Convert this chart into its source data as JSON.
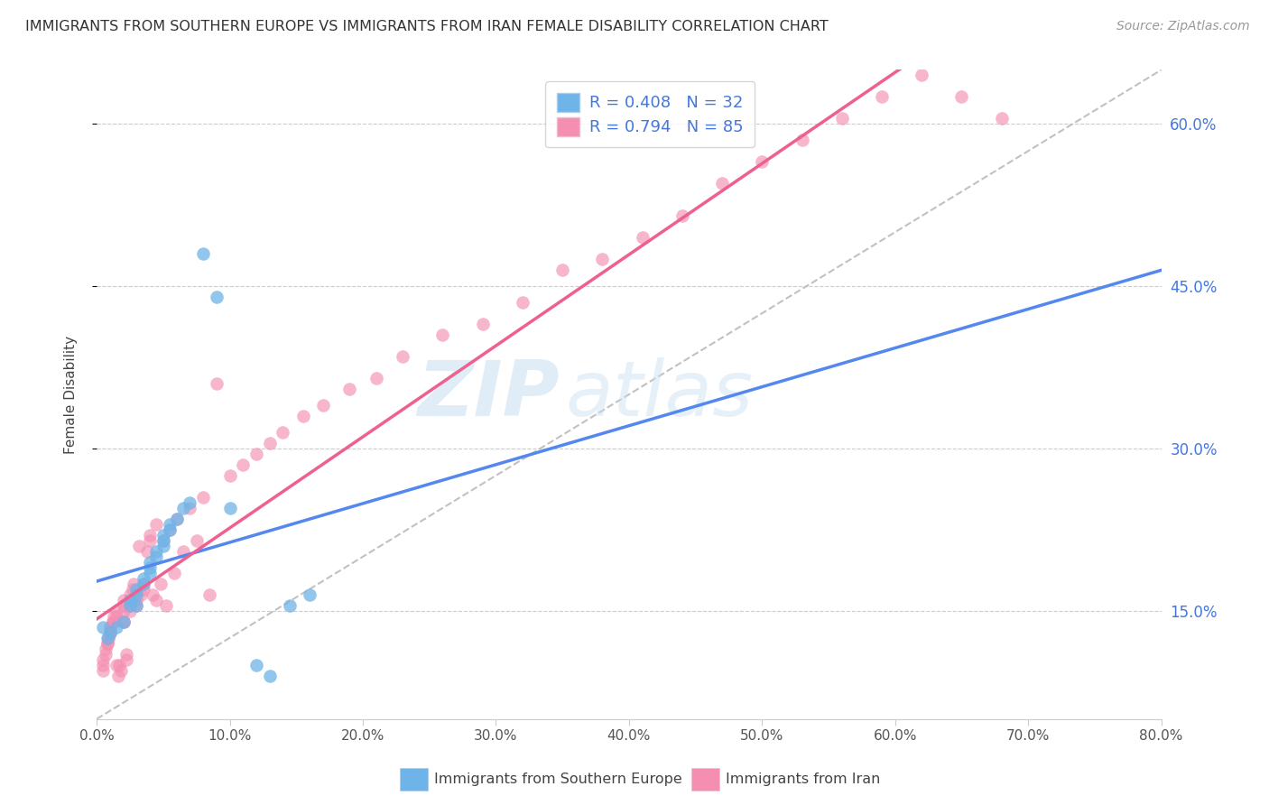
{
  "title": "IMMIGRANTS FROM SOUTHERN EUROPE VS IMMIGRANTS FROM IRAN FEMALE DISABILITY CORRELATION CHART",
  "source": "Source: ZipAtlas.com",
  "ylabel": "Female Disability",
  "ytick_labels": [
    "15.0%",
    "30.0%",
    "45.0%",
    "60.0%"
  ],
  "ytick_values": [
    0.15,
    0.3,
    0.45,
    0.6
  ],
  "xlim": [
    0.0,
    0.8
  ],
  "ylim": [
    0.05,
    0.65
  ],
  "legend_r1": "0.408",
  "legend_n1": "32",
  "legend_r2": "0.794",
  "legend_n2": "85",
  "legend_label1": "Immigrants from Southern Europe",
  "legend_label2": "Immigrants from Iran",
  "color_blue": "#6EB4E8",
  "color_pink": "#F48FB1",
  "color_blue_text": "#4477DD",
  "color_pink_line": "#EE6090",
  "color_blue_line": "#5588EE",
  "color_diagonal_dash": "#BBBBBB",
  "watermark_zip": "ZIP",
  "watermark_atlas": "atlas",
  "scatter_blue_x": [
    0.005,
    0.008,
    0.01,
    0.015,
    0.02,
    0.025,
    0.025,
    0.03,
    0.03,
    0.03,
    0.035,
    0.035,
    0.04,
    0.04,
    0.04,
    0.045,
    0.045,
    0.05,
    0.05,
    0.05,
    0.055,
    0.055,
    0.06,
    0.065,
    0.07,
    0.08,
    0.09,
    0.1,
    0.12,
    0.13,
    0.145,
    0.16
  ],
  "scatter_blue_y": [
    0.135,
    0.125,
    0.13,
    0.135,
    0.14,
    0.155,
    0.16,
    0.155,
    0.165,
    0.17,
    0.175,
    0.18,
    0.185,
    0.19,
    0.195,
    0.2,
    0.205,
    0.21,
    0.215,
    0.22,
    0.225,
    0.23,
    0.235,
    0.245,
    0.25,
    0.48,
    0.44,
    0.245,
    0.1,
    0.09,
    0.155,
    0.165
  ],
  "scatter_pink_x": [
    0.005,
    0.005,
    0.005,
    0.007,
    0.007,
    0.008,
    0.008,
    0.009,
    0.009,
    0.01,
    0.01,
    0.01,
    0.01,
    0.012,
    0.012,
    0.013,
    0.013,
    0.015,
    0.015,
    0.015,
    0.016,
    0.017,
    0.018,
    0.02,
    0.02,
    0.02,
    0.02,
    0.02,
    0.022,
    0.022,
    0.025,
    0.025,
    0.025,
    0.027,
    0.028,
    0.03,
    0.03,
    0.03,
    0.032,
    0.033,
    0.035,
    0.035,
    0.038,
    0.04,
    0.04,
    0.042,
    0.045,
    0.045,
    0.048,
    0.05,
    0.052,
    0.055,
    0.058,
    0.06,
    0.065,
    0.07,
    0.075,
    0.08,
    0.085,
    0.09,
    0.1,
    0.11,
    0.12,
    0.13,
    0.14,
    0.155,
    0.17,
    0.19,
    0.21,
    0.23,
    0.26,
    0.29,
    0.32,
    0.35,
    0.38,
    0.41,
    0.44,
    0.47,
    0.5,
    0.53,
    0.56,
    0.59,
    0.62,
    0.65,
    0.68
  ],
  "scatter_pink_y": [
    0.095,
    0.1,
    0.105,
    0.11,
    0.115,
    0.12,
    0.12,
    0.125,
    0.125,
    0.13,
    0.13,
    0.135,
    0.135,
    0.14,
    0.14,
    0.14,
    0.145,
    0.145,
    0.15,
    0.1,
    0.09,
    0.1,
    0.095,
    0.14,
    0.14,
    0.15,
    0.155,
    0.16,
    0.11,
    0.105,
    0.15,
    0.155,
    0.165,
    0.17,
    0.175,
    0.155,
    0.16,
    0.165,
    0.21,
    0.165,
    0.17,
    0.175,
    0.205,
    0.215,
    0.22,
    0.165,
    0.23,
    0.16,
    0.175,
    0.215,
    0.155,
    0.225,
    0.185,
    0.235,
    0.205,
    0.245,
    0.215,
    0.255,
    0.165,
    0.36,
    0.275,
    0.285,
    0.295,
    0.305,
    0.315,
    0.33,
    0.34,
    0.355,
    0.365,
    0.385,
    0.405,
    0.415,
    0.435,
    0.465,
    0.475,
    0.495,
    0.515,
    0.545,
    0.565,
    0.585,
    0.605,
    0.625,
    0.645,
    0.625,
    0.605
  ]
}
